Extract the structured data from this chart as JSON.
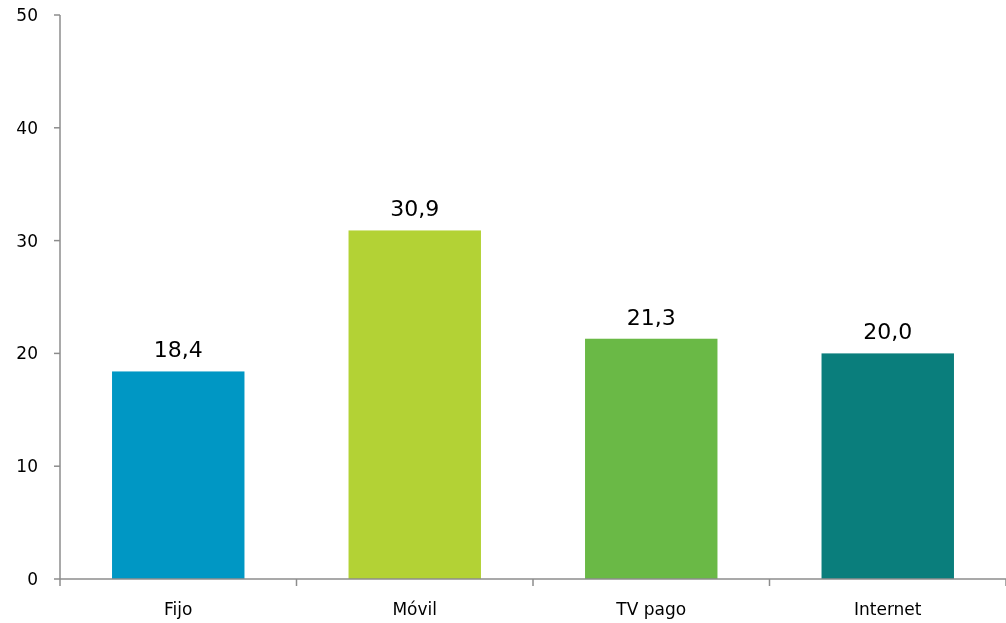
{
  "chart_data": {
    "type": "bar",
    "categories": [
      "Fijo",
      "Móvil",
      "TV pago",
      "Internet"
    ],
    "values": [
      18.4,
      30.9,
      21.3,
      20.0
    ],
    "colors": [
      "#0097c4",
      "#b3d235",
      "#6ab946",
      "#0a7e7c"
    ],
    "value_labels": [
      "18,4",
      "30,9",
      "21,3",
      "20,0"
    ],
    "ylim": [
      0,
      50
    ],
    "yticks": [
      0,
      10,
      20,
      30,
      40,
      50
    ],
    "grid": false
  }
}
